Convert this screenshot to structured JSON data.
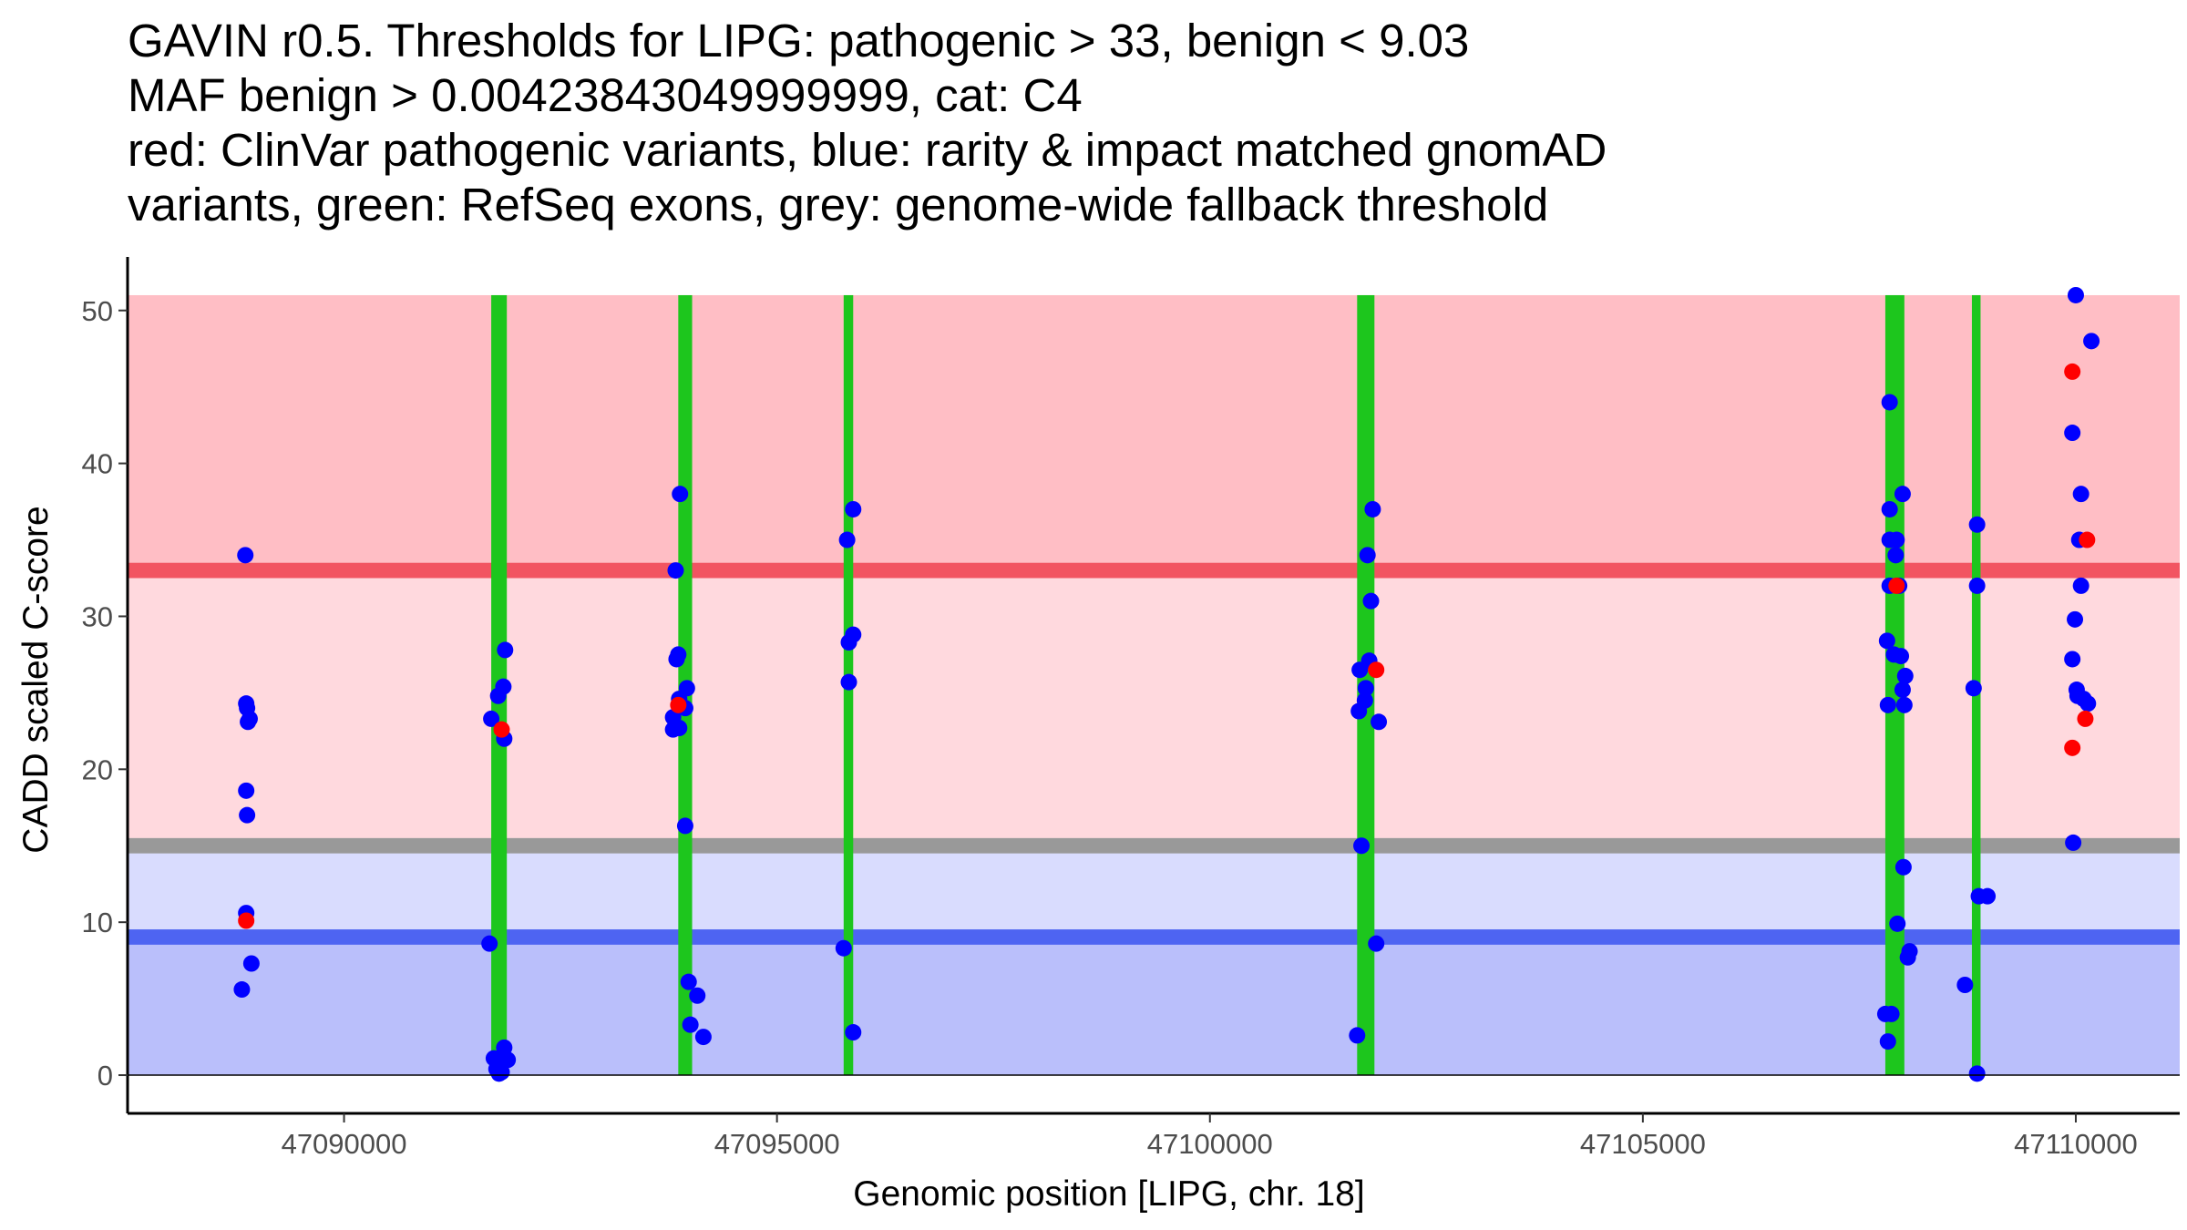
{
  "chart_data": {
    "type": "scatter",
    "title_lines": [
      "GAVIN r0.5. Thresholds for LIPG: pathogenic > 33, benign < 9.03",
      "MAF benign > 0.00423843049999999, cat: C4",
      "red: ClinVar pathogenic variants, blue: rarity & impact matched gnomAD",
      "variants, green: RefSeq exons, grey: genome-wide fallback threshold"
    ],
    "xlabel": "Genomic position [LIPG, chr. 18]",
    "ylabel": "CADD scaled C-score",
    "xlim": [
      47087500,
      47111200
    ],
    "ylim": [
      -2.5,
      53.5
    ],
    "xticks": [
      47090000,
      47095000,
      47100000,
      47105000,
      47110000
    ],
    "xtick_labels": [
      "47090000",
      "47095000",
      "47100000",
      "47105000",
      "47110000"
    ],
    "yticks": [
      0,
      10,
      20,
      30,
      40,
      50
    ],
    "ytick_labels": [
      "0",
      "10",
      "20",
      "30",
      "40",
      "50"
    ],
    "grid": false,
    "thresholds": {
      "pathogenic": 33,
      "benign": 9.03,
      "genome_wide_fallback": 15,
      "max_score": 51
    },
    "colors": {
      "pathogenic_region": "#FFBEC5",
      "uncertain_upper_region": "#FFD9DE",
      "uncertain_lower_region": "#D9DCFE",
      "benign_region": "#BABFFB",
      "pathogenic_line": "#F25461",
      "benign_line": "#4E64F2",
      "fallback_line": "#999999",
      "exon": "#1DC61D",
      "clinvar_point": "#FF0000",
      "gnomad_point": "#0000FF",
      "axis": "#000000"
    },
    "exons": [
      {
        "start": 47091700,
        "end": 47091880
      },
      {
        "start": 47093860,
        "end": 47094020
      },
      {
        "start": 47095770,
        "end": 47095880
      },
      {
        "start": 47101700,
        "end": 47101900
      },
      {
        "start": 47107800,
        "end": 47108020
      },
      {
        "start": 47108800,
        "end": 47108900
      }
    ],
    "series": [
      {
        "name": "rarity & impact matched gnomAD variants",
        "color": "#0000FF",
        "points": [
          [
            47088860,
            34
          ],
          [
            47088870,
            24.3
          ],
          [
            47088880,
            24
          ],
          [
            47088890,
            23.1
          ],
          [
            47088910,
            23.3
          ],
          [
            47088870,
            18.6
          ],
          [
            47088880,
            17
          ],
          [
            47088870,
            10.6
          ],
          [
            47088930,
            7.3
          ],
          [
            47088820,
            5.6
          ],
          [
            47091700,
            23.3
          ],
          [
            47091780,
            24.8
          ],
          [
            47091840,
            25.4
          ],
          [
            47091860,
            27.8
          ],
          [
            47091850,
            22
          ],
          [
            47091680,
            8.6
          ],
          [
            47091730,
            1.1
          ],
          [
            47091760,
            0.4
          ],
          [
            47091790,
            0.1
          ],
          [
            47091820,
            0.2
          ],
          [
            47091850,
            1.8
          ],
          [
            47091890,
            1
          ],
          [
            47093880,
            38
          ],
          [
            47093830,
            33
          ],
          [
            47093840,
            27.2
          ],
          [
            47093860,
            27.5
          ],
          [
            47093870,
            24.6
          ],
          [
            47093940,
            24
          ],
          [
            47093960,
            25.3
          ],
          [
            47093800,
            23.4
          ],
          [
            47093800,
            22.6
          ],
          [
            47093870,
            22.7
          ],
          [
            47093940,
            16.3
          ],
          [
            47093980,
            6.1
          ],
          [
            47094080,
            5.2
          ],
          [
            47094000,
            3.3
          ],
          [
            47094150,
            2.5
          ],
          [
            47095880,
            37
          ],
          [
            47095810,
            35
          ],
          [
            47095880,
            28.8
          ],
          [
            47095830,
            28.3
          ],
          [
            47095830,
            25.7
          ],
          [
            47095770,
            8.3
          ],
          [
            47095880,
            2.8
          ],
          [
            47101880,
            37
          ],
          [
            47101820,
            34
          ],
          [
            47101860,
            31
          ],
          [
            47101840,
            27.1
          ],
          [
            47101730,
            26.5
          ],
          [
            47101800,
            25.3
          ],
          [
            47101790,
            24.5
          ],
          [
            47101720,
            23.8
          ],
          [
            47101950,
            23.1
          ],
          [
            47101750,
            15
          ],
          [
            47101920,
            8.6
          ],
          [
            47101700,
            2.6
          ],
          [
            47107850,
            44
          ],
          [
            47107850,
            37
          ],
          [
            47107850,
            35
          ],
          [
            47107930,
            35
          ],
          [
            47107920,
            34
          ],
          [
            47108000,
            38
          ],
          [
            47107850,
            32
          ],
          [
            47107960,
            32
          ],
          [
            47107820,
            28.4
          ],
          [
            47107900,
            27.5
          ],
          [
            47107980,
            27.4
          ],
          [
            47108030,
            26.1
          ],
          [
            47108000,
            25.2
          ],
          [
            47107830,
            24.2
          ],
          [
            47108020,
            24.2
          ],
          [
            47108010,
            13.6
          ],
          [
            47107940,
            9.9
          ],
          [
            47108060,
            7.7
          ],
          [
            47108080,
            8.1
          ],
          [
            47107800,
            4
          ],
          [
            47107870,
            4
          ],
          [
            47107830,
            2.2
          ],
          [
            47108860,
            36
          ],
          [
            47108860,
            32
          ],
          [
            47108820,
            25.3
          ],
          [
            47108880,
            11.7
          ],
          [
            47108980,
            11.7
          ],
          [
            47108720,
            5.9
          ],
          [
            47108860,
            0.1
          ],
          [
            47110000,
            51
          ],
          [
            47110180,
            48
          ],
          [
            47109960,
            42
          ],
          [
            47110060,
            38
          ],
          [
            47110040,
            35
          ],
          [
            47110060,
            32
          ],
          [
            47109990,
            29.8
          ],
          [
            47109960,
            27.2
          ],
          [
            47110010,
            25.2
          ],
          [
            47110020,
            24.8
          ],
          [
            47110090,
            24.6
          ],
          [
            47110140,
            24.3
          ],
          [
            47109970,
            15.2
          ]
        ]
      },
      {
        "name": "ClinVar pathogenic variants",
        "color": "#FF0000",
        "points": [
          [
            47088870,
            10.1
          ],
          [
            47091820,
            22.6
          ],
          [
            47093860,
            24.2
          ],
          [
            47101920,
            26.5
          ],
          [
            47107930,
            32
          ],
          [
            47109960,
            46
          ],
          [
            47110130,
            35
          ],
          [
            47110110,
            23.3
          ],
          [
            47109960,
            21.4
          ]
        ]
      }
    ]
  }
}
